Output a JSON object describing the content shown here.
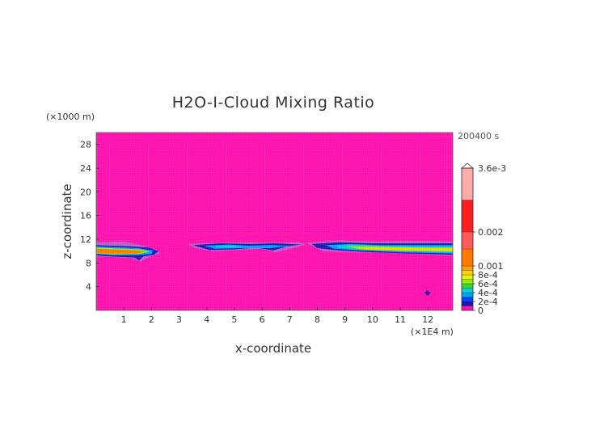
{
  "chart_data": {
    "type": "heatmap",
    "title": "H2O-I-Cloud Mixing Ratio",
    "time_label": "200400 s",
    "xlabel": "x-coordinate",
    "ylabel": "z-coordinate",
    "x_unit": "(×1E4 m)",
    "y_unit": "(×1000 m)",
    "xlim": [
      0,
      12.9
    ],
    "ylim": [
      0,
      30
    ],
    "x_ticks": [
      1,
      2,
      3,
      4,
      5,
      6,
      7,
      8,
      9,
      10,
      11,
      12
    ],
    "x_tick_labels": [
      "1",
      "2",
      "3",
      "4",
      "5",
      "6",
      "7",
      "8",
      "9",
      "10",
      "11",
      "12"
    ],
    "y_ticks": [
      4,
      8,
      12,
      16,
      20,
      24,
      28
    ],
    "y_tick_labels": [
      "4",
      "8",
      "12",
      "16",
      "20",
      "24",
      "28"
    ],
    "background_color": "#ff0fae",
    "colorbar": {
      "max_label": "3.6e-3",
      "tick_labels": [
        {
          "value": 0.002,
          "label": "0.002"
        },
        {
          "value": 0.001,
          "label": "0.001"
        },
        {
          "value": 0.0008,
          "label": "8e-4"
        },
        {
          "value": 0.0006,
          "label": "6e-4"
        },
        {
          "value": 0.0004,
          "label": "4e-4"
        },
        {
          "value": 0.0002,
          "label": "2e-4"
        },
        {
          "value": 0,
          "label": "0"
        }
      ],
      "bands": [
        {
          "lo": 0,
          "hi": 0.0001,
          "color": "#ff10b0"
        },
        {
          "lo": 0.0001,
          "hi": 0.0002,
          "color": "#1e14b4"
        },
        {
          "lo": 0.0002,
          "hi": 0.0003,
          "color": "#0046ff"
        },
        {
          "lo": 0.0003,
          "hi": 0.0004,
          "color": "#00a0ff"
        },
        {
          "lo": 0.0004,
          "hi": 0.0005,
          "color": "#00d2d2"
        },
        {
          "lo": 0.0005,
          "hi": 0.0006,
          "color": "#3cd23c"
        },
        {
          "lo": 0.0006,
          "hi": 0.0007,
          "color": "#8cf000"
        },
        {
          "lo": 0.0007,
          "hi": 0.0008,
          "color": "#f0f000"
        },
        {
          "lo": 0.0008,
          "hi": 0.0009,
          "color": "#ffd200"
        },
        {
          "lo": 0.0009,
          "hi": 0.001,
          "color": "#ffa000"
        },
        {
          "lo": 0.001,
          "hi": 0.0015,
          "color": "#ff7800"
        },
        {
          "lo": 0.0015,
          "hi": 0.002,
          "color": "#ff5a5a"
        },
        {
          "lo": 0.002,
          "hi": 0.0028,
          "color": "#ff1e1e"
        },
        {
          "lo": 0.0028,
          "hi": 0.0036,
          "color": "#ffaaaa"
        }
      ]
    },
    "features": [
      {
        "name": "left cloud band",
        "x_range": [
          0,
          2.2
        ],
        "z_range": [
          8.3,
          11.2
        ],
        "peak": 0.0011,
        "core_color": "#ff7800"
      },
      {
        "name": "central cloud band",
        "x_range": [
          3.3,
          7.5
        ],
        "z_range": [
          9.7,
          11.3
        ],
        "peak": 0.0005,
        "core_color": "#00d2d2"
      },
      {
        "name": "right cloud band",
        "x_range": [
          7.6,
          12.9
        ],
        "z_range": [
          9.2,
          11.6
        ],
        "peak": 0.0009,
        "core_color": "#ffd200"
      },
      {
        "name": "small blob",
        "x_range": [
          11.9,
          12.1
        ],
        "z_range": [
          2.4,
          3.4
        ],
        "peak": 0.00015,
        "core_color": "#1e14b4"
      }
    ]
  }
}
